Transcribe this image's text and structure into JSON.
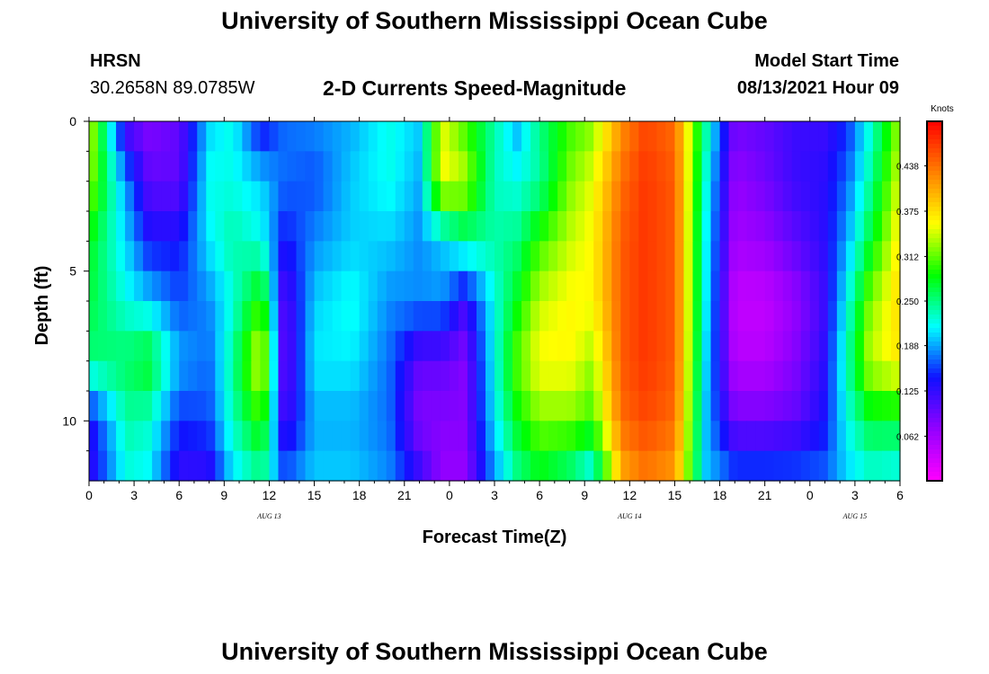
{
  "header": {
    "title": "University of Southern Mississippi Ocean Cube",
    "station": "HRSN",
    "coords": "30.2658N  89.0785W",
    "subtitle": "2-D Currents Speed-Magnitude",
    "model_label": "Model Start Time",
    "model_time": "08/13/2021 Hour 09"
  },
  "footer": {
    "title": "University of Southern Mississippi Ocean Cube"
  },
  "chart_data": {
    "type": "heatmap",
    "title": "2-D Currents Speed-Magnitude",
    "xlabel": "Forecast Time(Z)",
    "ylabel": "Depth (ft)",
    "x_tick_labels": [
      "0",
      "3",
      "6",
      "9",
      "12",
      "15",
      "18",
      "21",
      "0",
      "3",
      "6",
      "9",
      "12",
      "15",
      "18",
      "21",
      "0",
      "3",
      "6"
    ],
    "x_date_labels": [
      {
        "text": "AUG 13",
        "at_tick": 4
      },
      {
        "text": "AUG 14",
        "at_tick": 12
      },
      {
        "text": "AUG 15",
        "at_tick": 17
      }
    ],
    "y_tick_labels": [
      "0",
      "5",
      "10"
    ],
    "y_range": [
      0,
      12
    ],
    "y_inverted": true,
    "x_range_hours": [
      0,
      54
    ],
    "colorbar": {
      "unit": "Knots",
      "range": [
        0.0,
        0.5
      ],
      "ticks": [
        "0.062",
        "0.125",
        "0.188",
        "0.250",
        "0.312",
        "0.375",
        "0.438"
      ],
      "colors": [
        "#ff00ff",
        "#9400ff",
        "#1010ff",
        "#00ffff",
        "#00ff00",
        "#ffff00",
        "#ff8000",
        "#ff0000"
      ]
    },
    "column_hours": [
      0,
      2.5,
      4,
      6,
      8,
      9.5,
      11.5,
      13,
      15,
      17.5,
      20,
      22,
      23.5,
      25,
      27,
      28.5,
      30,
      32,
      33.5,
      35.5,
      37,
      39,
      41,
      43,
      45,
      47,
      49,
      50.5,
      52,
      54
    ],
    "depth_rows": [
      0,
      2,
      4,
      6,
      8,
      10,
      12
    ],
    "speed": [
      [
        0.35,
        0.1,
        0.08,
        0.1,
        0.2,
        0.22,
        0.13,
        0.17,
        0.18,
        0.19,
        0.22,
        0.2,
        0.35,
        0.3,
        0.24,
        0.19,
        0.25,
        0.3,
        0.32,
        0.42,
        0.46,
        0.44,
        0.25,
        0.09,
        0.1,
        0.12,
        0.12,
        0.15,
        0.22,
        0.33
      ],
      [
        0.33,
        0.18,
        0.1,
        0.1,
        0.22,
        0.22,
        0.2,
        0.17,
        0.16,
        0.2,
        0.22,
        0.19,
        0.36,
        0.34,
        0.23,
        0.22,
        0.24,
        0.32,
        0.35,
        0.44,
        0.47,
        0.45,
        0.23,
        0.07,
        0.09,
        0.12,
        0.13,
        0.17,
        0.24,
        0.35
      ],
      [
        0.28,
        0.2,
        0.14,
        0.14,
        0.21,
        0.24,
        0.22,
        0.14,
        0.18,
        0.2,
        0.2,
        0.18,
        0.2,
        0.24,
        0.24,
        0.25,
        0.3,
        0.34,
        0.36,
        0.45,
        0.47,
        0.45,
        0.22,
        0.06,
        0.07,
        0.1,
        0.13,
        0.19,
        0.27,
        0.37
      ],
      [
        0.27,
        0.22,
        0.2,
        0.16,
        0.18,
        0.22,
        0.3,
        0.1,
        0.2,
        0.22,
        0.18,
        0.18,
        0.18,
        0.12,
        0.22,
        0.28,
        0.34,
        0.36,
        0.36,
        0.45,
        0.47,
        0.45,
        0.22,
        0.04,
        0.04,
        0.07,
        0.12,
        0.22,
        0.32,
        0.38
      ],
      [
        0.25,
        0.26,
        0.28,
        0.19,
        0.17,
        0.24,
        0.36,
        0.09,
        0.21,
        0.21,
        0.17,
        0.1,
        0.1,
        0.08,
        0.22,
        0.31,
        0.36,
        0.36,
        0.33,
        0.45,
        0.47,
        0.45,
        0.21,
        0.05,
        0.05,
        0.08,
        0.13,
        0.24,
        0.34,
        0.37
      ],
      [
        0.13,
        0.24,
        0.23,
        0.15,
        0.16,
        0.23,
        0.3,
        0.11,
        0.19,
        0.19,
        0.17,
        0.08,
        0.08,
        0.08,
        0.21,
        0.28,
        0.32,
        0.32,
        0.3,
        0.44,
        0.46,
        0.44,
        0.2,
        0.09,
        0.09,
        0.1,
        0.14,
        0.22,
        0.27,
        0.27
      ],
      [
        0.12,
        0.22,
        0.21,
        0.12,
        0.12,
        0.2,
        0.24,
        0.17,
        0.2,
        0.2,
        0.18,
        0.13,
        0.07,
        0.07,
        0.18,
        0.24,
        0.27,
        0.24,
        0.2,
        0.4,
        0.43,
        0.41,
        0.2,
        0.17,
        0.17,
        0.17,
        0.17,
        0.2,
        0.22,
        0.21
      ]
    ]
  }
}
